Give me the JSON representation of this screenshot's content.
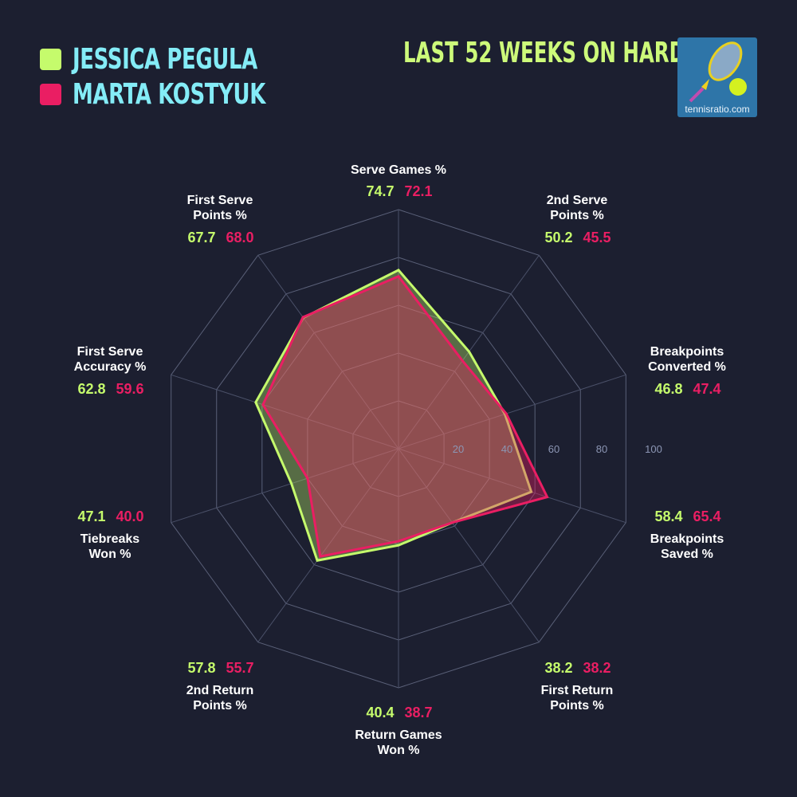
{
  "title": "LAST 52 WEEKS ON HARD",
  "logo": {
    "text": "tennisratio.com"
  },
  "legend": [
    {
      "name": "JESSICA PEGULA",
      "color": "#c5fb6c"
    },
    {
      "name": "MARTA KOSTYUK",
      "color": "#ea1e63"
    }
  ],
  "chart_data": {
    "type": "radar",
    "title": "LAST 52 WEEKS ON HARD",
    "range": [
      0,
      100
    ],
    "ticks": [
      "20",
      "40",
      "60",
      "80",
      "100"
    ],
    "grid": true,
    "legend_placement": "top-left",
    "axes": [
      {
        "title": [
          "Serve Games %"
        ]
      },
      {
        "title": [
          "2nd Serve",
          "Points %"
        ]
      },
      {
        "title": [
          "Breakpoints",
          "Converted %"
        ]
      },
      {
        "title": [
          "Breakpoints",
          "Saved %"
        ]
      },
      {
        "title": [
          "First Return",
          "Points %"
        ]
      },
      {
        "title": [
          "Return Games",
          "Won %"
        ]
      },
      {
        "title": [
          "2nd Return",
          "Points %"
        ]
      },
      {
        "title": [
          "Tiebreaks",
          "Won %"
        ]
      },
      {
        "title": [
          "First Serve",
          "Accuracy %"
        ]
      },
      {
        "title": [
          "First Serve",
          "Points %"
        ]
      }
    ],
    "series": [
      {
        "name": "JESSICA PEGULA",
        "color": "#c5fb6c",
        "values": [
          "74.7",
          "50.2",
          "46.8",
          "58.4",
          "38.2",
          "40.4",
          "57.8",
          "47.1",
          "62.8",
          "67.7"
        ]
      },
      {
        "name": "MARTA KOSTYUK",
        "color": "#ea1e63",
        "values": [
          "72.1",
          "45.5",
          "47.4",
          "65.4",
          "38.2",
          "38.7",
          "55.7",
          "40.0",
          "59.6",
          "68.0"
        ]
      }
    ]
  }
}
